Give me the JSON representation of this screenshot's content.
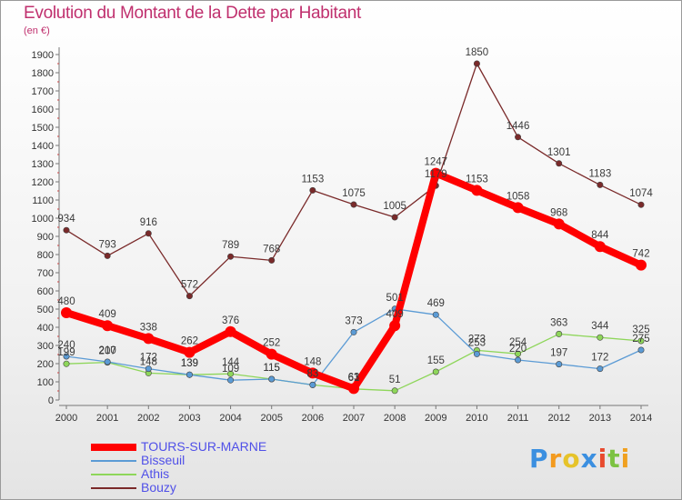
{
  "header": {
    "title": "Evolution du Montant de la Dette par Habitant",
    "unit": "(en €)"
  },
  "logo": {
    "letters": [
      "P",
      "r",
      "o",
      "x",
      "i",
      "t",
      "i"
    ],
    "colors": [
      "#3b8fe0",
      "#f39a1e",
      "#e6c32a",
      "#3b8fe0",
      "#e84a2e",
      "#7cc242",
      "#f0a020"
    ]
  },
  "chart_data": {
    "type": "line",
    "title": "Evolution du Montant de la Dette par Habitant",
    "ylabel": "(en €)",
    "xlabel": "",
    "categories": [
      "2000",
      "2001",
      "2002",
      "2003",
      "2004",
      "2005",
      "2006",
      "2007",
      "2008",
      "2009",
      "2010",
      "2011",
      "2012",
      "2013",
      "2014"
    ],
    "ylim": [
      0,
      1900
    ],
    "yticks": [
      0,
      100,
      200,
      300,
      400,
      500,
      600,
      700,
      800,
      900,
      1000,
      1100,
      1200,
      1300,
      1400,
      1500,
      1600,
      1700,
      1800,
      1900
    ],
    "grid": false,
    "legend_position": "bottom-left",
    "series": [
      {
        "name": "TOURS-SUR-MARNE",
        "color": "#ff0000",
        "values": [
          480,
          409,
          338,
          262,
          376,
          252,
          148,
          63,
          409,
          1247,
          1153,
          1058,
          968,
          844,
          742
        ]
      },
      {
        "name": "Bisseuil",
        "color": "#5b9bd5",
        "values": [
          240,
          210,
          172,
          139,
          109,
          115,
          83,
          373,
          501,
          469,
          253,
          220,
          197,
          172,
          275
        ]
      },
      {
        "name": "Athis",
        "color": "#8ed65a",
        "values": [
          199,
          207,
          148,
          139,
          144,
          115,
          83,
          61,
          51,
          155,
          273,
          254,
          363,
          344,
          325
        ]
      },
      {
        "name": "Bouzy",
        "color": "#7a2a2a",
        "values": [
          934,
          793,
          916,
          572,
          789,
          768,
          1153,
          1075,
          1005,
          1179,
          1850,
          1446,
          1301,
          1183,
          1074
        ]
      }
    ]
  }
}
